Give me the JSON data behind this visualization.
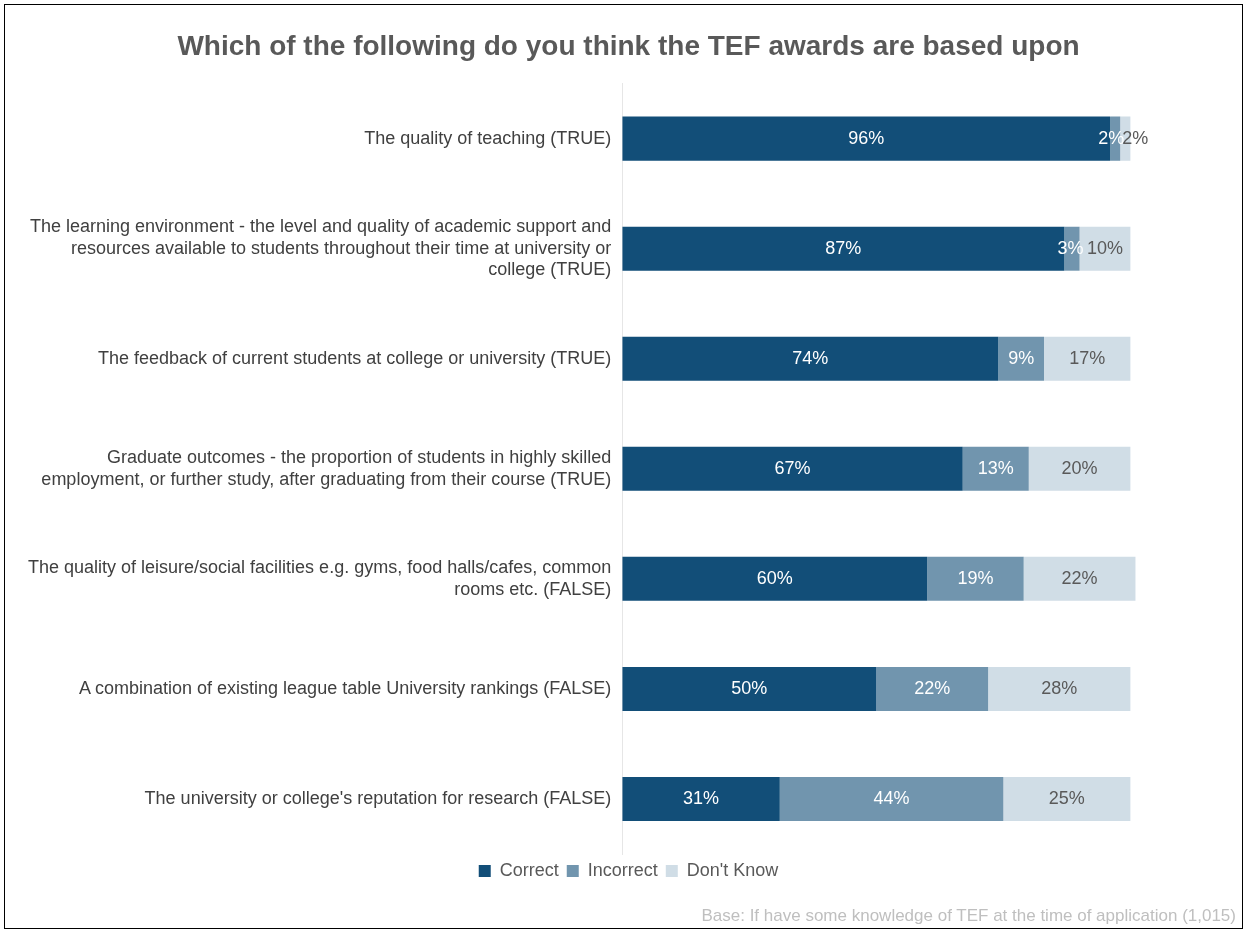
{
  "chart_data": {
    "type": "bar",
    "orientation": "horizontal",
    "stacked": true,
    "title": "Which of the following do you think the TEF awards are based upon",
    "categories": [
      "The quality of teaching (TRUE)",
      "The learning environment - the level and quality of academic support and resources available to students throughout their time at university or college (TRUE)",
      "The feedback of current students at college or university (TRUE)",
      "Graduate outcomes - the proportion of students in highly skilled employment, or further study, after graduating from their course (TRUE)",
      "The quality of leisure/social facilities e.g. gyms, food halls/cafes, common rooms etc. (FALSE)",
      "A combination of existing league table University rankings (FALSE)",
      "The university or college's reputation for research (FALSE)"
    ],
    "series": [
      {
        "name": "Correct",
        "color": "#124e78",
        "values": [
          96,
          87,
          74,
          67,
          60,
          50,
          31
        ],
        "value_labels": [
          "96%",
          "87%",
          "74%",
          "67%",
          "60%",
          "50%",
          "31%"
        ]
      },
      {
        "name": "Incorrect",
        "color": "#7195ae",
        "values": [
          2,
          3,
          9,
          13,
          19,
          22,
          44
        ],
        "value_labels": [
          "2%",
          "3%",
          "9%",
          "13%",
          "19%",
          "22%",
          "44%"
        ]
      },
      {
        "name": "Don't Know",
        "color": "#d0dde6",
        "values": [
          2,
          10,
          17,
          20,
          22,
          28,
          25
        ],
        "value_labels": [
          "2%",
          "10%",
          "17%",
          "20%",
          "22%",
          "28%",
          "25%"
        ]
      }
    ],
    "legend": "bottom",
    "grid": false,
    "annotations": [
      "Base: If have some knowledge of TEF at the time of application (1,015)"
    ]
  }
}
